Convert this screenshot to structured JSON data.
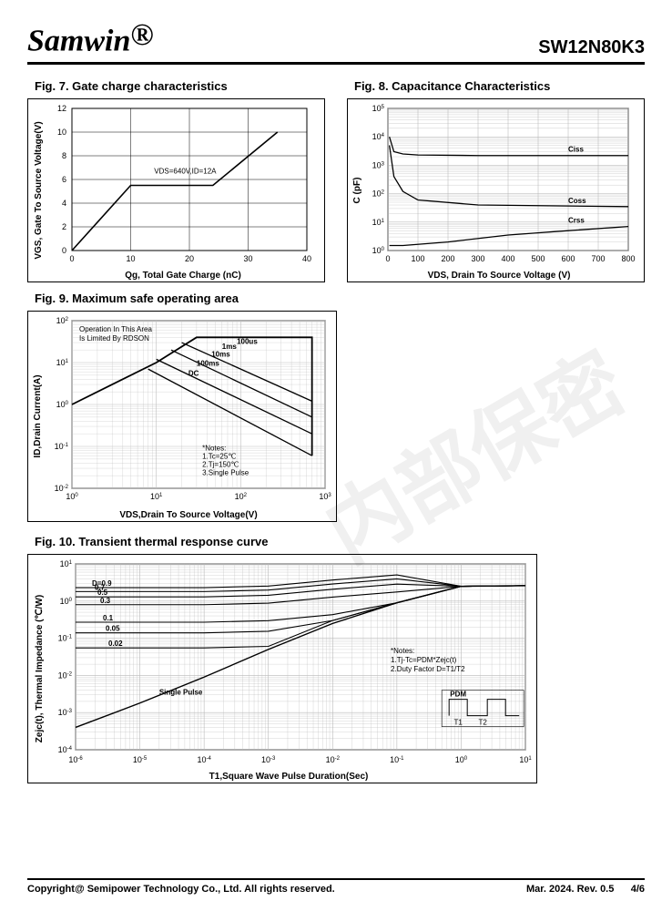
{
  "header": {
    "brand": "Samwin",
    "brand_sup": "®",
    "partno": "SW12N80K3"
  },
  "fig7": {
    "title": "Fig. 7. Gate charge characteristics",
    "type": "line",
    "xlabel": "Qg, Total Gate Charge (nC)",
    "ylabel": "VGS, Gate To Source Voltage(V)",
    "xticks": [
      0,
      10,
      20,
      30,
      40
    ],
    "yticks": [
      0,
      2,
      4,
      6,
      8,
      10,
      12
    ],
    "xlim": [
      0,
      40
    ],
    "ylim": [
      0,
      12
    ],
    "annotation": "VDS=640V,ID=12A",
    "series": [
      {
        "x": [
          0,
          10,
          24,
          35
        ],
        "y": [
          0,
          5.5,
          5.5,
          10
        ]
      }
    ],
    "line_color": "#000000",
    "grid_color": "#000000",
    "background_color": "#ffffff"
  },
  "fig8": {
    "title": "Fig. 8. Capacitance Characteristics",
    "type": "line-semilogy",
    "xlabel": "VDS, Drain To Source Voltage (V)",
    "ylabel": "C (pF)",
    "xticks": [
      0,
      100,
      200,
      300,
      400,
      500,
      600,
      700,
      800
    ],
    "yticks_exp": [
      0,
      1,
      2,
      3,
      4,
      5
    ],
    "xlim": [
      0,
      800
    ],
    "ylim_exp": [
      0,
      5
    ],
    "labels": [
      "Ciss",
      "Coss",
      "Crss"
    ],
    "series": [
      {
        "name": "Ciss",
        "points": [
          [
            5,
            10000
          ],
          [
            20,
            3000
          ],
          [
            50,
            2500
          ],
          [
            100,
            2300
          ],
          [
            300,
            2200
          ],
          [
            800,
            2200
          ]
        ]
      },
      {
        "name": "Coss",
        "points": [
          [
            5,
            5000
          ],
          [
            20,
            400
          ],
          [
            50,
            120
          ],
          [
            100,
            60
          ],
          [
            300,
            40
          ],
          [
            800,
            35
          ]
        ]
      },
      {
        "name": "Crss",
        "points": [
          [
            5,
            1.5
          ],
          [
            50,
            1.5
          ],
          [
            200,
            2
          ],
          [
            400,
            3.5
          ],
          [
            600,
            5
          ],
          [
            800,
            7
          ]
        ]
      }
    ],
    "line_color": "#000000",
    "grid_color": "#b0b0b0",
    "background_color": "#ffffff"
  },
  "fig9": {
    "title": "Fig. 9. Maximum safe operating area",
    "type": "loglog",
    "xlabel": "VDS,Drain To Source Voltage(V)",
    "ylabel": "ID,Drain Current(A)",
    "xticks_exp": [
      0,
      1,
      2,
      3
    ],
    "yticks_exp": [
      -2,
      -1,
      0,
      1,
      2
    ],
    "xlim_exp": [
      0,
      3
    ],
    "ylim_exp": [
      -2,
      2
    ],
    "op_label": "Operation In This Area\nIs Limited By RDSON",
    "curve_labels": [
      "100us",
      "1ms",
      "10ms",
      "100ms",
      "DC"
    ],
    "notes": "*Notes:\n1.Tc=25℃\n2.Tj=150℃\n3.Single Pulse",
    "boundary": [
      [
        1,
        1
      ],
      [
        10,
        10
      ],
      [
        30,
        40
      ],
      [
        700,
        40
      ],
      [
        700,
        0.06
      ]
    ],
    "curves": [
      {
        "name": "100us",
        "points": [
          [
            30,
            40
          ],
          [
            700,
            40
          ],
          [
            700,
            3
          ]
        ]
      },
      {
        "name": "1ms",
        "points": [
          [
            20,
            30
          ],
          [
            700,
            1.2
          ]
        ]
      },
      {
        "name": "10ms",
        "points": [
          [
            15,
            20
          ],
          [
            700,
            0.5
          ]
        ]
      },
      {
        "name": "100ms",
        "points": [
          [
            10,
            12
          ],
          [
            700,
            0.2
          ]
        ]
      },
      {
        "name": "DC",
        "points": [
          [
            8,
            7
          ],
          [
            700,
            0.06
          ]
        ]
      }
    ],
    "line_color": "#000000",
    "grid_color": "#c0c0c0",
    "background_color": "#ffffff"
  },
  "fig10": {
    "title": "Fig. 10. Transient thermal response curve",
    "type": "loglog",
    "xlabel": "T1,Square Wave Pulse Duration(Sec)",
    "ylabel": "Zejc(t), Thermal Impedance (℃/W)",
    "xticks_exp": [
      -6,
      -5,
      -4,
      -3,
      -2,
      -1,
      0,
      1
    ],
    "yticks_exp": [
      -4,
      -3,
      -2,
      -1,
      0,
      1
    ],
    "xlim_exp": [
      -6,
      1
    ],
    "ylim_exp": [
      -4,
      1
    ],
    "d_labels": [
      "D=0.9",
      "0.7",
      "0.5",
      "0.3",
      "0.1",
      "0.05",
      "0.02"
    ],
    "single_label": "Single Pulse",
    "notes": "*Notes:\n1.Tj-Tc=PDM*Zejc(t)\n2.Duty Factor D=T1/T2",
    "pdm_label": "PDM",
    "t1_label": "T1",
    "t2_label": "T2",
    "curves": [
      {
        "d": "0.9",
        "y0": 2.3
      },
      {
        "d": "0.7",
        "y0": 1.8
      },
      {
        "d": "0.5",
        "y0": 1.3
      },
      {
        "d": "0.3",
        "y0": 0.8
      },
      {
        "d": "0.1",
        "y0": 0.27
      },
      {
        "d": "0.05",
        "y0": 0.14
      },
      {
        "d": "0.02",
        "y0": 0.055
      }
    ],
    "single_pulse": [
      [
        1e-06,
        0.0004
      ],
      [
        1e-05,
        0.0018
      ],
      [
        0.0001,
        0.009
      ],
      [
        0.001,
        0.05
      ],
      [
        0.01,
        0.25
      ],
      [
        0.1,
        0.9
      ],
      [
        1,
        2.5
      ],
      [
        10,
        2.6
      ]
    ],
    "line_color": "#000000",
    "grid_color": "#b8b8b8",
    "background_color": "#ffffff"
  },
  "footer": {
    "copyright": "Copyright@ Semipower Technology Co., Ltd. All rights reserved.",
    "date": "Mar. 2024. Rev. 0.5",
    "page": "4/6"
  },
  "watermark": "内部保密"
}
